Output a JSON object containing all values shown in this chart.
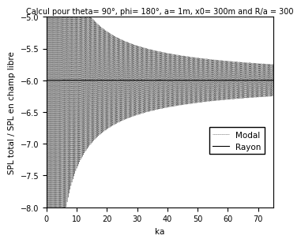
{
  "title": "Calcul pour theta= 90°, phi= 180°, a= 1m, x0= 300m and R/a = 300",
  "xlabel": "ka",
  "ylabel": "SPL total / SPL en champ libre",
  "xlim": [
    0,
    75
  ],
  "ylim": [
    -8,
    -5
  ],
  "yticks": [
    -8,
    -7.5,
    -7,
    -6.5,
    -6,
    -5.5,
    -5
  ],
  "xticks": [
    0,
    10,
    20,
    30,
    40,
    50,
    60,
    70
  ],
  "legend_rayon": "Rayon",
  "legend_modal": "Modal",
  "line_color_rayon": "#000000",
  "line_color_modal": "#555555",
  "background_color": "#ffffff",
  "asymptote": -6.0,
  "title_fontsize": 7.0,
  "label_fontsize": 7.5,
  "tick_fontsize": 7,
  "legend_fontsize": 7.5,
  "ka_min": 0.01,
  "ka_max": 75.0,
  "ka_points": 20000,
  "freq_factor": 2.0,
  "amp_scale": 2.5,
  "amp_ref_ka": 5.0,
  "amp_exp": 0.85,
  "phase": 0.0,
  "R_over_a": 300
}
